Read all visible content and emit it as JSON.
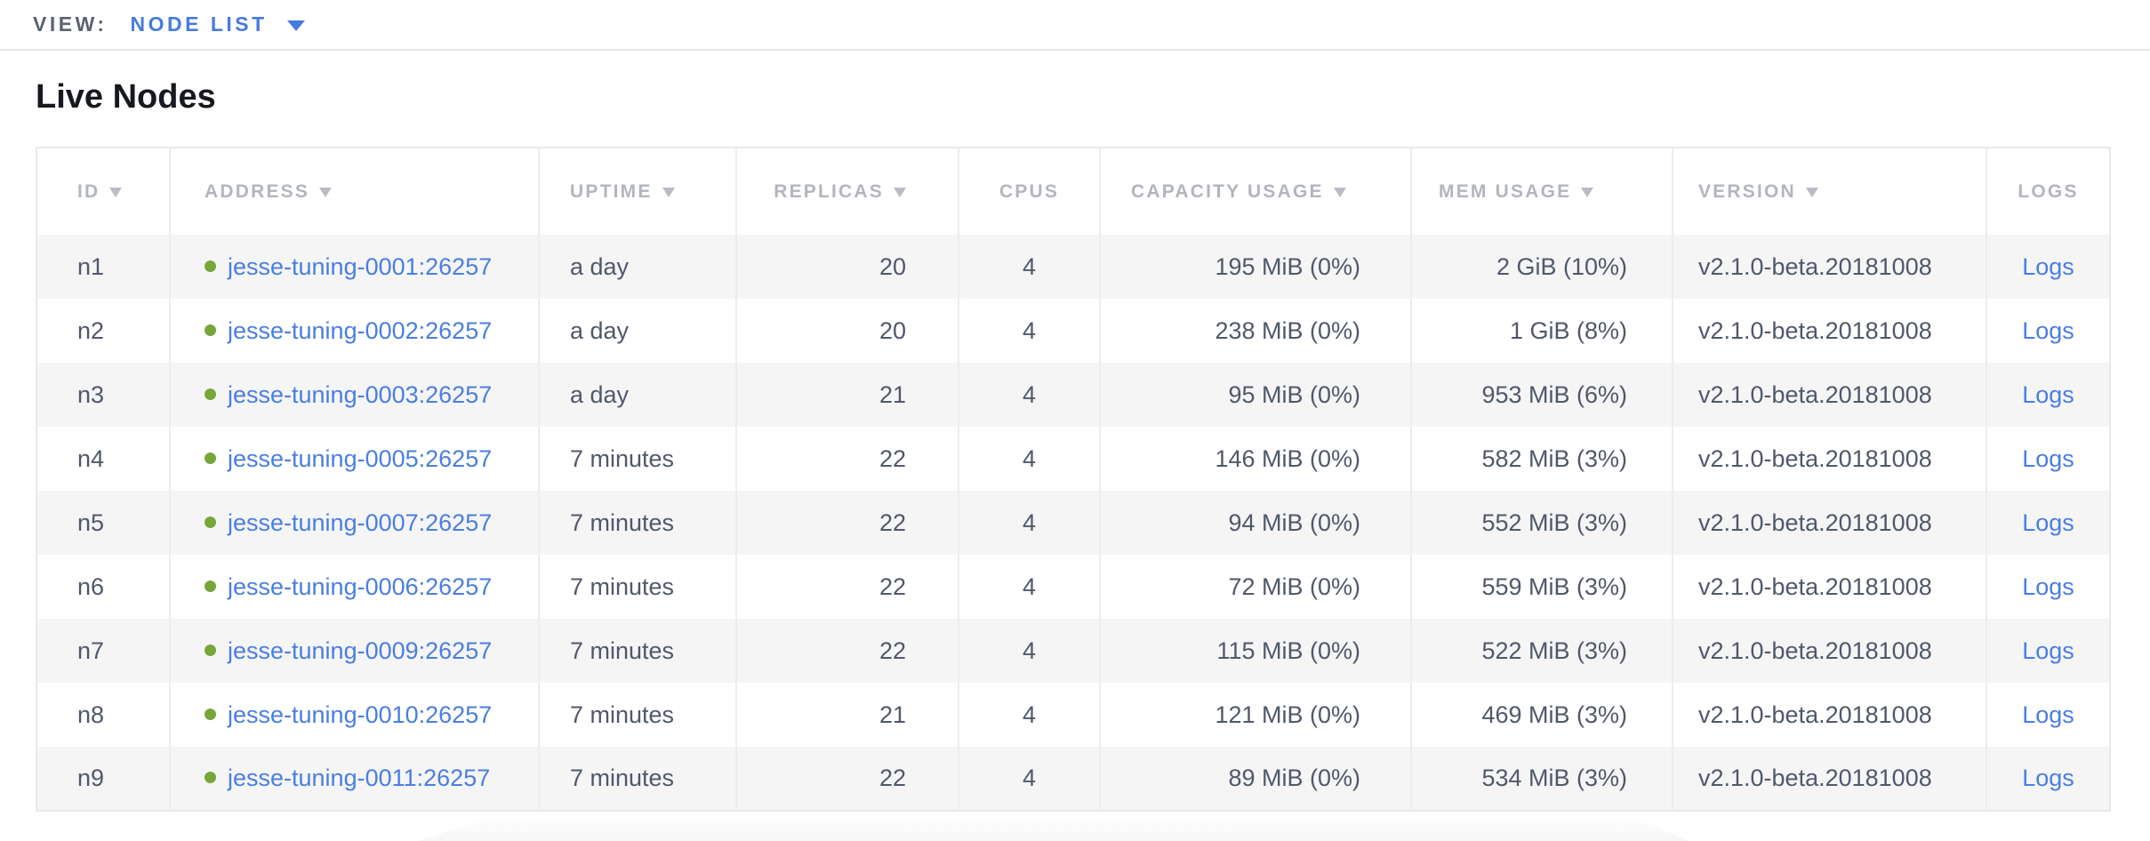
{
  "view_bar": {
    "label": "VIEW:",
    "selected": "NODE LIST"
  },
  "page": {
    "title": "Live Nodes"
  },
  "colors": {
    "accent_blue": "#477be0",
    "link_blue": "#4a7ee0",
    "healthy_green": "#77a63b",
    "header_gray": "#b2b6bc",
    "body_text": "#505869",
    "stripe_gray": "#f5f5f6",
    "border_gray": "#e9e9eb"
  },
  "table": {
    "columns": [
      {
        "key": "id",
        "label": "ID",
        "sortable": true
      },
      {
        "key": "address",
        "label": "ADDRESS",
        "sortable": true
      },
      {
        "key": "uptime",
        "label": "UPTIME",
        "sortable": true
      },
      {
        "key": "replicas",
        "label": "REPLICAS",
        "sortable": true
      },
      {
        "key": "cpus",
        "label": "CPUS",
        "sortable": false
      },
      {
        "key": "capacity_usage",
        "label": "CAPACITY USAGE",
        "sortable": true
      },
      {
        "key": "mem_usage",
        "label": "MEM USAGE",
        "sortable": true
      },
      {
        "key": "version",
        "label": "VERSION",
        "sortable": true
      },
      {
        "key": "logs",
        "label": "LOGS",
        "sortable": false
      }
    ],
    "rows": [
      {
        "id": "n1",
        "status": "healthy",
        "address": "jesse-tuning-0001:26257",
        "uptime": "a day",
        "replicas": "20",
        "cpus": "4",
        "capacity_usage": "195 MiB (0%)",
        "mem_usage": "2 GiB (10%)",
        "version": "v2.1.0-beta.20181008",
        "logs": "Logs"
      },
      {
        "id": "n2",
        "status": "healthy",
        "address": "jesse-tuning-0002:26257",
        "uptime": "a day",
        "replicas": "20",
        "cpus": "4",
        "capacity_usage": "238 MiB (0%)",
        "mem_usage": "1 GiB (8%)",
        "version": "v2.1.0-beta.20181008",
        "logs": "Logs"
      },
      {
        "id": "n3",
        "status": "healthy",
        "address": "jesse-tuning-0003:26257",
        "uptime": "a day",
        "replicas": "21",
        "cpus": "4",
        "capacity_usage": "95 MiB (0%)",
        "mem_usage": "953 MiB (6%)",
        "version": "v2.1.0-beta.20181008",
        "logs": "Logs"
      },
      {
        "id": "n4",
        "status": "healthy",
        "address": "jesse-tuning-0005:26257",
        "uptime": "7 minutes",
        "replicas": "22",
        "cpus": "4",
        "capacity_usage": "146 MiB (0%)",
        "mem_usage": "582 MiB (3%)",
        "version": "v2.1.0-beta.20181008",
        "logs": "Logs"
      },
      {
        "id": "n5",
        "status": "healthy",
        "address": "jesse-tuning-0007:26257",
        "uptime": "7 minutes",
        "replicas": "22",
        "cpus": "4",
        "capacity_usage": "94 MiB (0%)",
        "mem_usage": "552 MiB (3%)",
        "version": "v2.1.0-beta.20181008",
        "logs": "Logs"
      },
      {
        "id": "n6",
        "status": "healthy",
        "address": "jesse-tuning-0006:26257",
        "uptime": "7 minutes",
        "replicas": "22",
        "cpus": "4",
        "capacity_usage": "72 MiB (0%)",
        "mem_usage": "559 MiB (3%)",
        "version": "v2.1.0-beta.20181008",
        "logs": "Logs"
      },
      {
        "id": "n7",
        "status": "healthy",
        "address": "jesse-tuning-0009:26257",
        "uptime": "7 minutes",
        "replicas": "22",
        "cpus": "4",
        "capacity_usage": "115 MiB (0%)",
        "mem_usage": "522 MiB (3%)",
        "version": "v2.1.0-beta.20181008",
        "logs": "Logs"
      },
      {
        "id": "n8",
        "status": "healthy",
        "address": "jesse-tuning-0010:26257",
        "uptime": "7 minutes",
        "replicas": "21",
        "cpus": "4",
        "capacity_usage": "121 MiB (0%)",
        "mem_usage": "469 MiB (3%)",
        "version": "v2.1.0-beta.20181008",
        "logs": "Logs"
      },
      {
        "id": "n9",
        "status": "healthy",
        "address": "jesse-tuning-0011:26257",
        "uptime": "7 minutes",
        "replicas": "22",
        "cpus": "4",
        "capacity_usage": "89 MiB (0%)",
        "mem_usage": "534 MiB (3%)",
        "version": "v2.1.0-beta.20181008",
        "logs": "Logs"
      }
    ]
  }
}
